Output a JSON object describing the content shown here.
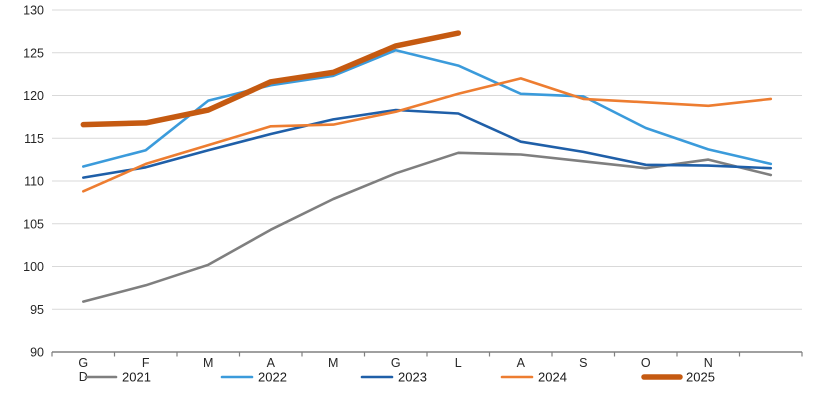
{
  "chart_data": {
    "type": "line",
    "title": "",
    "xlabel": "",
    "ylabel": "",
    "categories": [
      "G",
      "F",
      "M",
      "A",
      "M",
      "G",
      "L",
      "A",
      "S",
      "O",
      "N",
      "D"
    ],
    "series": [
      {
        "name": "2021",
        "color": "#7F7F7F",
        "stroke_width": 2.6,
        "values": [
          95.9,
          97.8,
          100.2,
          104.3,
          107.9,
          110.9,
          113.3,
          113.1,
          112.3,
          111.5,
          112.5,
          110.7
        ]
      },
      {
        "name": "2022",
        "color": "#3B9BDB",
        "stroke_width": 2.6,
        "values": [
          111.7,
          113.6,
          119.4,
          121.2,
          122.3,
          125.3,
          123.5,
          120.2,
          119.9,
          116.2,
          113.7,
          112.0
        ]
      },
      {
        "name": "2023",
        "color": "#1F5FA8",
        "stroke_width": 2.6,
        "values": [
          110.4,
          111.6,
          113.6,
          115.5,
          117.2,
          118.3,
          117.9,
          114.6,
          113.4,
          111.9,
          111.8,
          111.5
        ]
      },
      {
        "name": "2024",
        "color": "#ED7D31",
        "stroke_width": 2.6,
        "values": [
          108.8,
          112.0,
          114.2,
          116.4,
          116.6,
          118.1,
          120.2,
          122.0,
          119.6,
          119.2,
          118.8,
          119.6
        ]
      },
      {
        "name": "2025",
        "color": "#C55A11",
        "stroke_width": 5.5,
        "values": [
          116.6,
          116.8,
          118.3,
          121.6,
          122.7,
          125.8,
          127.3,
          null,
          null,
          null,
          null,
          null
        ]
      }
    ],
    "y_axis": {
      "min": 90,
      "max": 130,
      "step": 5,
      "tick_labels": [
        "90",
        "95",
        "100",
        "105",
        "110",
        "115",
        "120",
        "125",
        "130"
      ]
    },
    "legend": {
      "position": "bottom",
      "entries": [
        "2021",
        "2022",
        "2023",
        "2024",
        "2025"
      ]
    },
    "grid": true
  },
  "colors": {
    "gridline": "#D9D9D9",
    "axis": "#808080",
    "label_text": "#262626",
    "legend_text": "#1a1a1a",
    "background": "#FFFFFF"
  }
}
